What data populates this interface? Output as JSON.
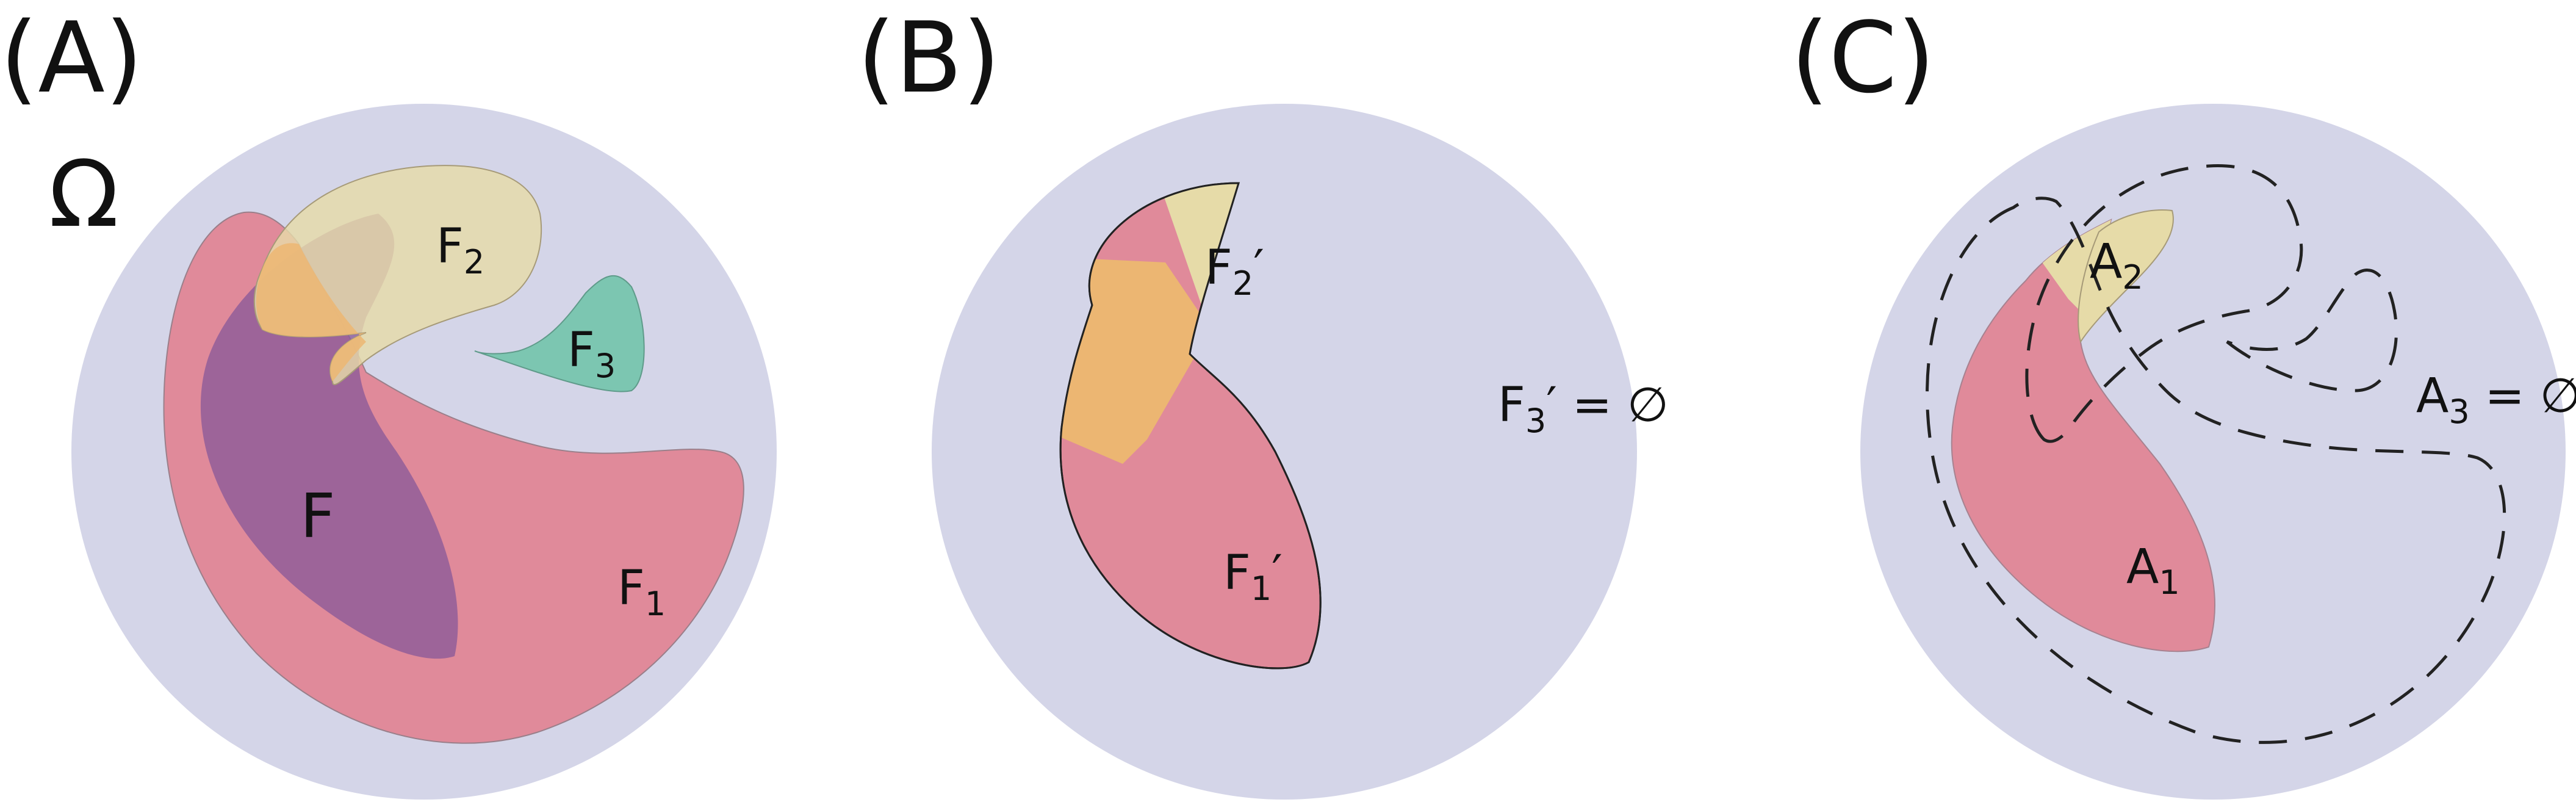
{
  "panels": [
    {
      "label": "(A)",
      "domain_symbol": "Ω",
      "sets": {
        "F": "F",
        "F1": {
          "base": "F",
          "sub": "1"
        },
        "F2": {
          "base": "F",
          "sub": "2"
        },
        "F3": {
          "base": "F",
          "sub": "3"
        }
      }
    },
    {
      "label": "(B)",
      "sets": {
        "F1p": {
          "base": "F",
          "sub": "1",
          "prime": "′"
        },
        "F2p": {
          "base": "F",
          "sub": "2",
          "prime": "′"
        },
        "F3p": {
          "base": "F",
          "sub": "3",
          "prime": "′",
          "eq": " = ∅"
        }
      }
    },
    {
      "label": "(C)",
      "sets": {
        "A1": {
          "base": "A",
          "sub": "1"
        },
        "A2": {
          "base": "A",
          "sub": "2"
        },
        "A3": {
          "base": "A",
          "sub": "3",
          "eq": " = ∅"
        }
      }
    }
  ],
  "colors": {
    "domain": "#d4d5e8",
    "f1": "#e08a9a",
    "f2": "#e6dba8",
    "f3": "#7cc6b1",
    "f": "#8b5a99",
    "overlap": "#ecb672"
  }
}
